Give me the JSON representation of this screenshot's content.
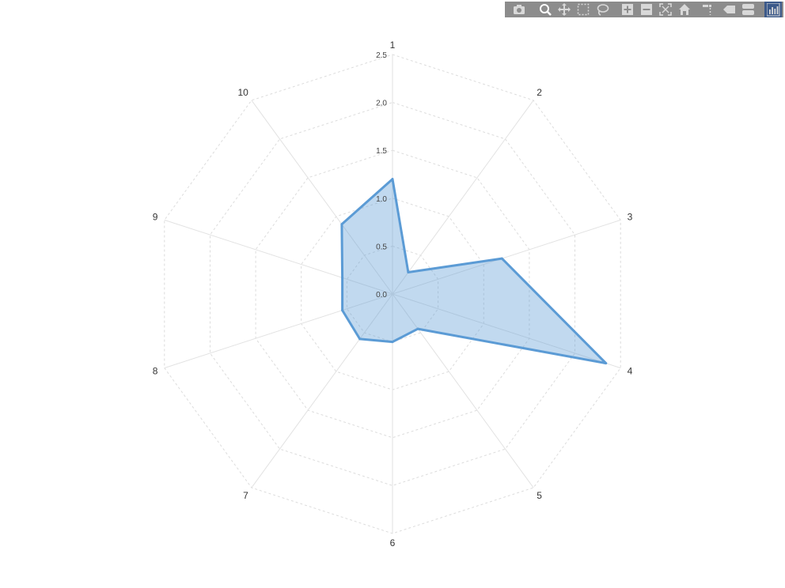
{
  "modebar": {
    "buttons": [
      {
        "name": "camera-icon",
        "active": false
      },
      {
        "name": "zoom-icon",
        "active": true
      },
      {
        "name": "pan-icon",
        "active": false
      },
      {
        "name": "box-select-icon",
        "active": false
      },
      {
        "name": "lasso-select-icon",
        "active": false
      },
      {
        "name": "zoom-in-icon",
        "active": false
      },
      {
        "name": "zoom-out-icon",
        "active": false
      },
      {
        "name": "autoscale-icon",
        "active": false
      },
      {
        "name": "reset-axes-icon",
        "active": false
      },
      {
        "name": "spike-lines-icon",
        "active": false
      },
      {
        "name": "hover-closest-icon",
        "active": false
      },
      {
        "name": "hover-compare-icon",
        "active": false
      },
      {
        "name": "plotly-logo-icon",
        "active": false
      }
    ],
    "colors": {
      "bar": "#8c8c8c",
      "icon": "#d8d8d8",
      "active_icon": "#ffffff",
      "active_bg": "#3c5a8a"
    }
  },
  "chart_data": {
    "type": "radar",
    "categories": [
      "1",
      "2",
      "3",
      "4",
      "5",
      "6",
      "7",
      "8",
      "9",
      "10"
    ],
    "series": [
      {
        "values": [
          1.2,
          0.28,
          1.2,
          2.34,
          0.45,
          0.5,
          0.58,
          0.55,
          0.55,
          0.9
        ],
        "line_color": "#5b9bd5",
        "fill_color": "rgba(91,155,213,0.38)"
      }
    ],
    "radial_ticks": [
      "0.0",
      "0.5",
      "1.0",
      "1.5",
      "2.0",
      "2.5"
    ],
    "radial_range": [
      0,
      2.5
    ],
    "grid": true,
    "legend": "none"
  }
}
